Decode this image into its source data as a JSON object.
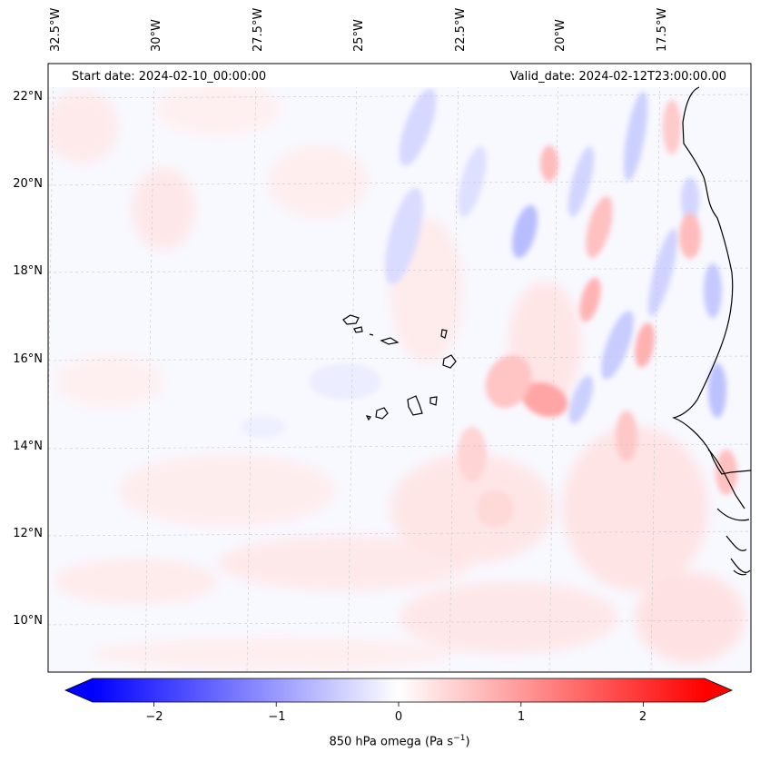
{
  "map": {
    "start_date_text": "Start date: 2024-02-10_00:00:00",
    "valid_date_text": "Valid_date: 2024-02-12T23:00:00.00",
    "longitude_labels": [
      "32.5°W",
      "30°W",
      "27.5°W",
      "25°W",
      "22.5°W",
      "20°W",
      "17.5°W"
    ],
    "latitude_labels": [
      "22°N",
      "20°N",
      "18°N",
      "16°N",
      "14°N",
      "12°N",
      "10°N"
    ],
    "field": "850 hPa omega",
    "units_label_prefix": "850 hPa omega (Pa s",
    "units_exponent": "−1",
    "units_label_suffix": ")",
    "colormap": "bwr",
    "colors": {
      "min": "#0000ff",
      "mid": "#ffffff",
      "max": "#ff0000",
      "coast": "#000000",
      "grid": "#c8c8c8"
    }
  },
  "colorbar": {
    "ticks": [
      "−2",
      "−1",
      "0",
      "1",
      "2"
    ],
    "tick_values": [
      -2,
      -1,
      0,
      1,
      2
    ],
    "vmin": -2.5,
    "vmax": 2.5,
    "extend": "both"
  }
}
